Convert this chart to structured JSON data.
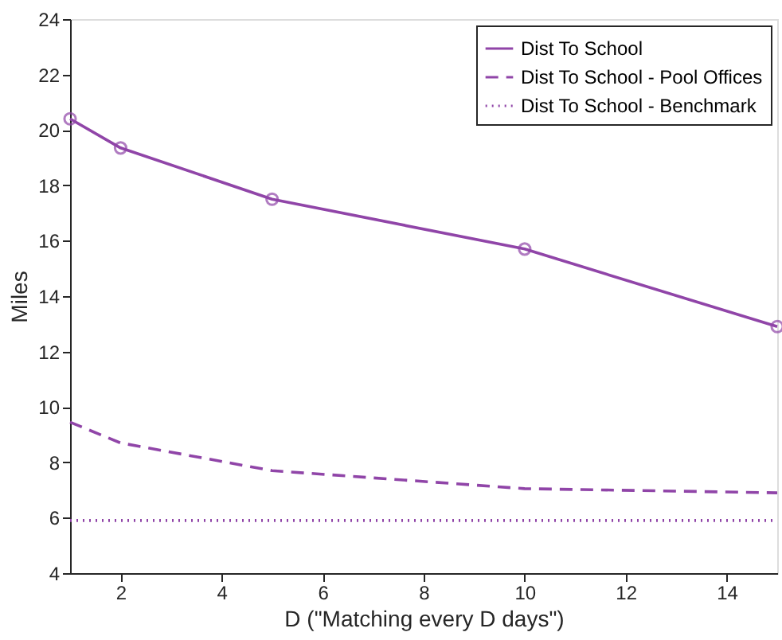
{
  "chart_data": {
    "type": "line",
    "xlabel": "D  (\"Matching every D days\")",
    "ylabel": "Miles",
    "x": [
      1,
      2,
      5,
      10,
      15
    ],
    "series": [
      {
        "name": "Dist To School",
        "color": "#9045a8",
        "values": [
          20.4,
          19.35,
          17.5,
          15.7,
          12.9
        ],
        "line_style": "solid",
        "marker": "circle"
      },
      {
        "name": "Dist To School - Pool Offices",
        "color": "#9045a8",
        "values": [
          9.45,
          8.7,
          7.7,
          7.05,
          6.9
        ],
        "line_style": "dashed",
        "marker": "none"
      },
      {
        "name": "Dist To School - Benchmark",
        "color": "#9045a8",
        "values": [
          5.9,
          5.9,
          5.9,
          5.9,
          5.9
        ],
        "line_style": "dotted",
        "marker": "none"
      }
    ],
    "xlim": [
      1,
      15
    ],
    "xticks": [
      2,
      4,
      6,
      8,
      10,
      12,
      14
    ],
    "ylim": [
      4,
      24
    ],
    "yticks": [
      4,
      6,
      8,
      10,
      12,
      14,
      16,
      18,
      20,
      22,
      24
    ],
    "grid": false,
    "legend": "top right"
  }
}
